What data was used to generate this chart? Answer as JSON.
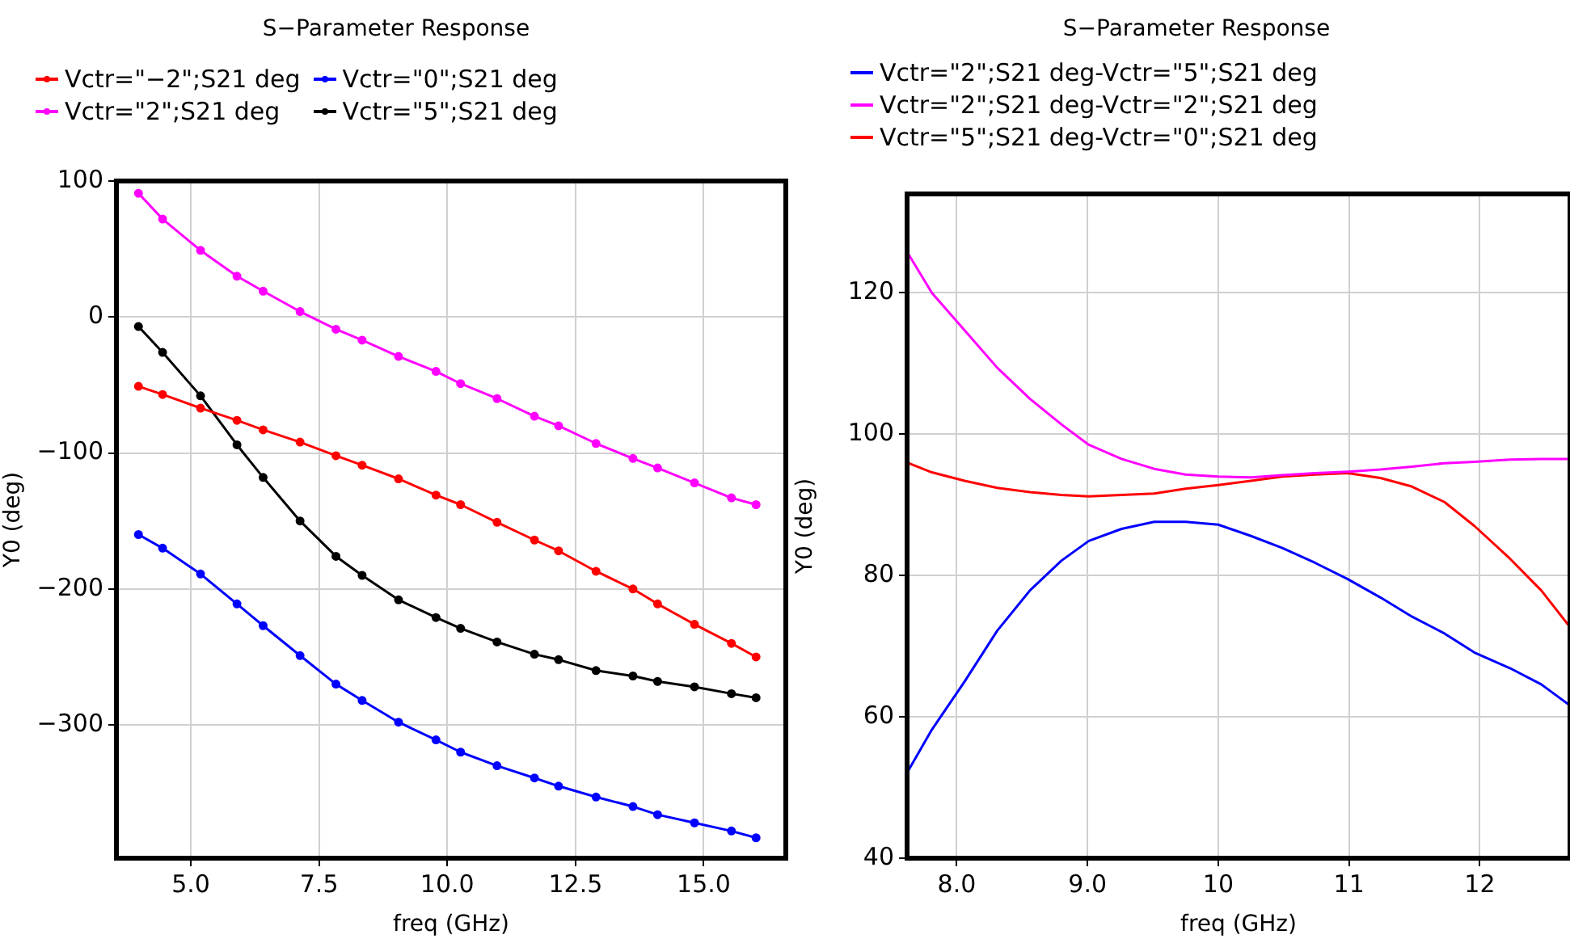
{
  "chart_data": [
    {
      "type": "line",
      "title": "S−Parameter Response",
      "xlabel": "freq (GHz)",
      "ylabel": "Y0 (deg)",
      "legend": "top left",
      "marker": "circle",
      "grid": true,
      "x": [
        3.98,
        4.45,
        5.19,
        5.9,
        6.41,
        7.13,
        7.83,
        8.34,
        9.05,
        9.78,
        10.26,
        10.97,
        11.7,
        12.17,
        12.9,
        13.62,
        14.1,
        14.82,
        15.54,
        16.02
      ],
      "xlim": [
        3.55,
        16.6
      ],
      "xticks": [
        {
          "value": 5,
          "label": "5.0"
        },
        {
          "value": 7.5,
          "label": "7.5"
        },
        {
          "value": 10,
          "label": "10.0"
        },
        {
          "value": 12.5,
          "label": "12.5"
        },
        {
          "value": 15,
          "label": "15.0"
        }
      ],
      "ylim": [
        -398,
        100
      ],
      "yticks": [
        {
          "value": -300,
          "label": "−300"
        },
        {
          "value": -200,
          "label": "−200"
        },
        {
          "value": -100,
          "label": "−100"
        },
        0,
        100
      ],
      "series": [
        {
          "name": "Vctr=\"−2\";S21 deg",
          "color": "#ff0000",
          "values": [
            -51,
            -57,
            -67,
            -76,
            -83,
            -92,
            -102,
            -109,
            -119,
            -131,
            -138,
            -151,
            -164,
            -172,
            -187,
            -200,
            -211,
            -226,
            -240,
            -250
          ]
        },
        {
          "name": "Vctr=\"0\";S21 deg",
          "color": "#0000ff",
          "values": [
            -160,
            -170,
            -189,
            -211,
            -227,
            -249,
            -270,
            -282,
            -298,
            -311,
            -320,
            -330,
            -339,
            -345,
            -353,
            -360,
            -366,
            -372,
            -378,
            -383
          ]
        },
        {
          "name": "Vctr=\"2\";S21 deg",
          "color": "#ff00ff",
          "values": [
            91,
            72,
            49,
            30,
            19,
            4,
            -9,
            -17,
            -29,
            -40,
            -49,
            -60,
            -73,
            -80,
            -93,
            -104,
            -111,
            -122,
            -133,
            -138
          ]
        },
        {
          "name": "Vctr=\"5\";S21 deg",
          "color": "#000000",
          "values": [
            -7,
            -26,
            -58,
            -94,
            -118,
            -150,
            -176,
            -190,
            -208,
            -221,
            -229,
            -239,
            -248,
            -252,
            -260,
            -264,
            -268,
            -272,
            -277,
            -280
          ]
        }
      ]
    },
    {
      "type": "line",
      "title": "S−Parameter Response",
      "xlabel": "freq (GHz)",
      "ylabel": "Y0 (deg)",
      "legend": "top left",
      "grid": true,
      "x": [
        7.62,
        7.81,
        8.06,
        8.31,
        8.56,
        8.8,
        9.01,
        9.26,
        9.51,
        9.75,
        10.0,
        10.25,
        10.49,
        10.74,
        10.99,
        11.24,
        11.48,
        11.73,
        11.96,
        12.23,
        12.47,
        12.69
      ],
      "xlim": [
        7.62,
        12.69
      ],
      "xticks": [
        {
          "value": 8,
          "label": "8.0"
        },
        {
          "value": 9,
          "label": "9.0"
        },
        10,
        11,
        12
      ],
      "ylim": [
        40,
        134
      ],
      "yticks": [
        40,
        60,
        80,
        100,
        120
      ],
      "series": [
        {
          "name": "Vctr=\"2\";S21 deg-Vctr=\"5\";S21 deg",
          "color": "#0000ff",
          "values": [
            52.1,
            58.2,
            65.0,
            72.2,
            77.9,
            82.1,
            84.9,
            86.6,
            87.6,
            87.6,
            87.2,
            85.6,
            83.9,
            81.8,
            79.5,
            76.9,
            74.2,
            71.8,
            69.1,
            66.9,
            64.6,
            61.6
          ]
        },
        {
          "name": "Vctr=\"2\";S21 deg-Vctr=\"2\";S21 deg",
          "color": "#ff00ff",
          "values": [
            125.8,
            120.0,
            114.7,
            109.4,
            105.0,
            101.4,
            98.5,
            96.5,
            95.1,
            94.3,
            94.0,
            93.9,
            94.2,
            94.5,
            94.7,
            95.0,
            95.4,
            95.9,
            96.1,
            96.4,
            96.5,
            96.5
          ]
        },
        {
          "name": "Vctr=\"5\";S21 deg-Vctr=\"0\";S21 deg",
          "color": "#ff0000",
          "values": [
            96.0,
            94.6,
            93.4,
            92.4,
            91.8,
            91.4,
            91.2,
            91.4,
            91.6,
            92.3,
            92.8,
            93.4,
            94.0,
            94.3,
            94.5,
            93.8,
            92.6,
            90.4,
            87.0,
            82.4,
            77.9,
            72.7
          ]
        }
      ]
    }
  ]
}
